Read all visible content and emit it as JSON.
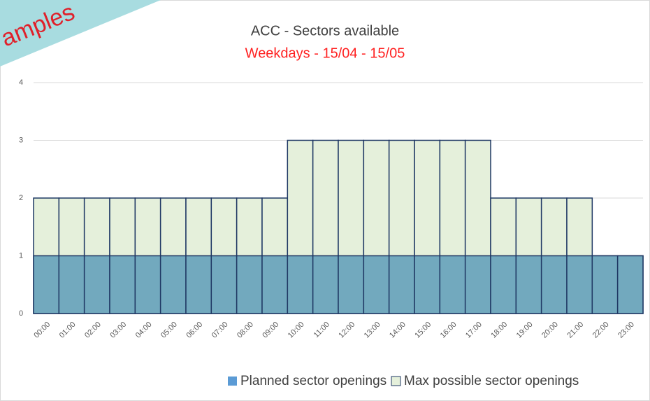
{
  "watermark": "amples",
  "chart_data": {
    "type": "bar",
    "overlap": true,
    "title": "ACC - Sectors available",
    "subtitle": "Weekdays - 15/04 - 15/05",
    "categories": [
      "00:00",
      "01:00",
      "02:00",
      "03:00",
      "04:00",
      "05:00",
      "06:00",
      "07:00",
      "08:00",
      "09:00",
      "10:00",
      "11:00",
      "12:00",
      "13:00",
      "14:00",
      "15:00",
      "16:00",
      "17:00",
      "18:00",
      "19:00",
      "20:00",
      "21:00",
      "22:00",
      "23:00"
    ],
    "series": [
      {
        "name": "Max possible sector openings",
        "color": "#e5f0db",
        "values": [
          2,
          2,
          2,
          2,
          2,
          2,
          2,
          2,
          2,
          2,
          3,
          3,
          3,
          3,
          3,
          3,
          3,
          3,
          2,
          2,
          2,
          2,
          1,
          1
        ]
      },
      {
        "name": "Planned sector openings",
        "color": "#72a9be",
        "values": [
          1,
          1,
          1,
          1,
          1,
          1,
          1,
          1,
          1,
          1,
          1,
          1,
          1,
          1,
          1,
          1,
          1,
          1,
          1,
          1,
          1,
          1,
          1,
          1
        ]
      }
    ],
    "ylim": [
      0,
      4
    ],
    "yticks": [
      0,
      1,
      2,
      3,
      4
    ],
    "grid": true
  }
}
